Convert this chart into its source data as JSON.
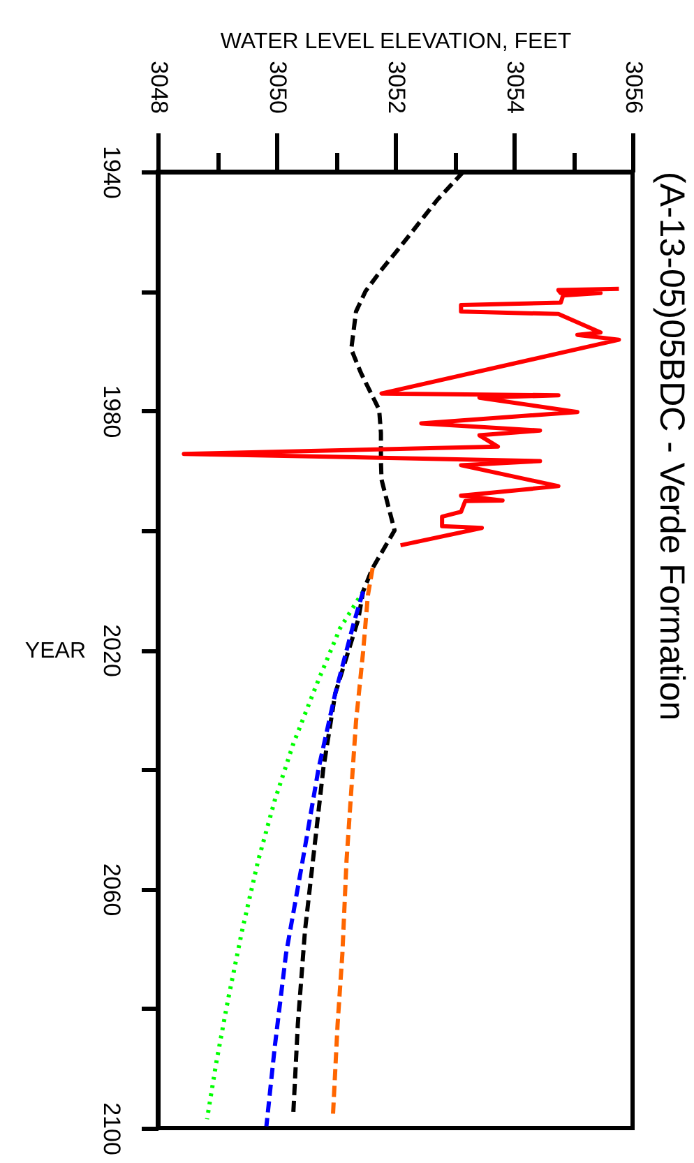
{
  "chart_data": {
    "type": "line",
    "title": "(A-13-05)05BDC - Verde Formation",
    "xlabel": "WATER LEVEL ELEVATION, FEET",
    "ylabel": "YEAR",
    "xlim": [
      3048,
      3056
    ],
    "xticks": [
      3048,
      {
        "value": 3049,
        "label": null
      },
      3050,
      {
        "value": 3051,
        "label": null
      },
      3052,
      {
        "value": 3053,
        "label": null
      },
      3054,
      {
        "value": 3055,
        "label": null
      },
      3056
    ],
    "ylim": [
      2100,
      1940
    ],
    "yticks": [
      1940,
      {
        "value": 1960,
        "label": null
      },
      1980,
      {
        "value": 2000,
        "label": null
      },
      2020,
      {
        "value": 2040,
        "label": null
      },
      2060,
      {
        "value": 2080,
        "label": null
      },
      2100
    ],
    "series": [
      {
        "color": "#00ff00",
        "line_style": "dotted",
        "values": [
          2010.2,
          2016.4,
          2025.7,
          2035.8,
          2045.2,
          2055.3,
          2067,
          2078.7,
          2088.8,
          2098.5
        ],
        "x": [
          3051.46,
          3051.07,
          3050.68,
          3050.28,
          3049.97,
          3049.69,
          3049.42,
          3049.18,
          3048.99,
          3048.83
        ]
      },
      {
        "color": "#000000",
        "line_style": "dashed",
        "values": [
          1940,
          1944.7,
          1948.6,
          1952.5,
          1956.4,
          1960,
          1963.4,
          1969.7,
          1973.6,
          1979.8,
          1983.7,
          1988.4,
          1991.5,
          1996.2,
          2000,
          2006.3,
          2010.2,
          2014.8,
          2027.3,
          2039.8,
          2053,
          2067,
          2082.6,
          2098.2
        ],
        "x": [
          3053.15,
          3052.71,
          3052.4,
          3052.09,
          3051.77,
          3051.5,
          3051.34,
          3051.26,
          3051.42,
          3051.73,
          3051.76,
          3051.76,
          3051.77,
          3051.89,
          3051.99,
          3051.62,
          3051.46,
          3051.38,
          3050.99,
          3050.79,
          3050.64,
          3050.48,
          3050.36,
          3050.28
        ]
      },
      {
        "color": "#0000ff",
        "line_style": "dashed",
        "values": [
          2010.2,
          2015.6,
          2027.3,
          2039.8,
          2055.3,
          2070.9,
          2086.5,
          2099.7
        ],
        "x": [
          3051.46,
          3051.3,
          3050.99,
          3050.71,
          3050.44,
          3050.16,
          3049.97,
          3049.83
        ]
      },
      {
        "color": "#ff6600",
        "line_style": "dashed",
        "values": [
          2006.3,
          2010.9,
          2020.3,
          2032,
          2043.6,
          2055.3,
          2070.9,
          2082.6,
          2098.2
        ],
        "x": [
          3051.62,
          3051.54,
          3051.46,
          3051.34,
          3051.26,
          3051.18,
          3051.11,
          3051.03,
          3050.95
        ]
      },
      {
        "color": "#ff0000",
        "line_style": "solid",
        "values": [
          1959.6,
          1959.8,
          1960.3,
          1960.3,
          1960.7,
          1961.9,
          1962.3,
          1963.4,
          1963.8,
          1966.9,
          1967.3,
          1968.1,
          1977.1,
          1977.4,
          1977.8,
          1980.2,
          1982.1,
          1983.3,
          1984.1,
          1986,
          1987.2,
          1988.4,
          1989.1,
          1992.6,
          1994.2,
          1995,
          1995.1,
          1996.9,
          1997.7,
          1999.3,
          1999.6,
          2002.5
        ],
        "x": [
          3055.77,
          3054.75,
          3054.79,
          3055.46,
          3054.83,
          3054.79,
          3053.11,
          3053.11,
          3054.75,
          3055.46,
          3055.07,
          3055.77,
          3051.77,
          3054.75,
          3053.42,
          3055.07,
          3052.44,
          3054.44,
          3053.42,
          3053.73,
          3048.44,
          3054.44,
          3053.11,
          3054.75,
          3053.11,
          3053.81,
          3053.18,
          3053.11,
          3052.79,
          3052.79,
          3053.46,
          3052.09
        ]
      }
    ]
  }
}
